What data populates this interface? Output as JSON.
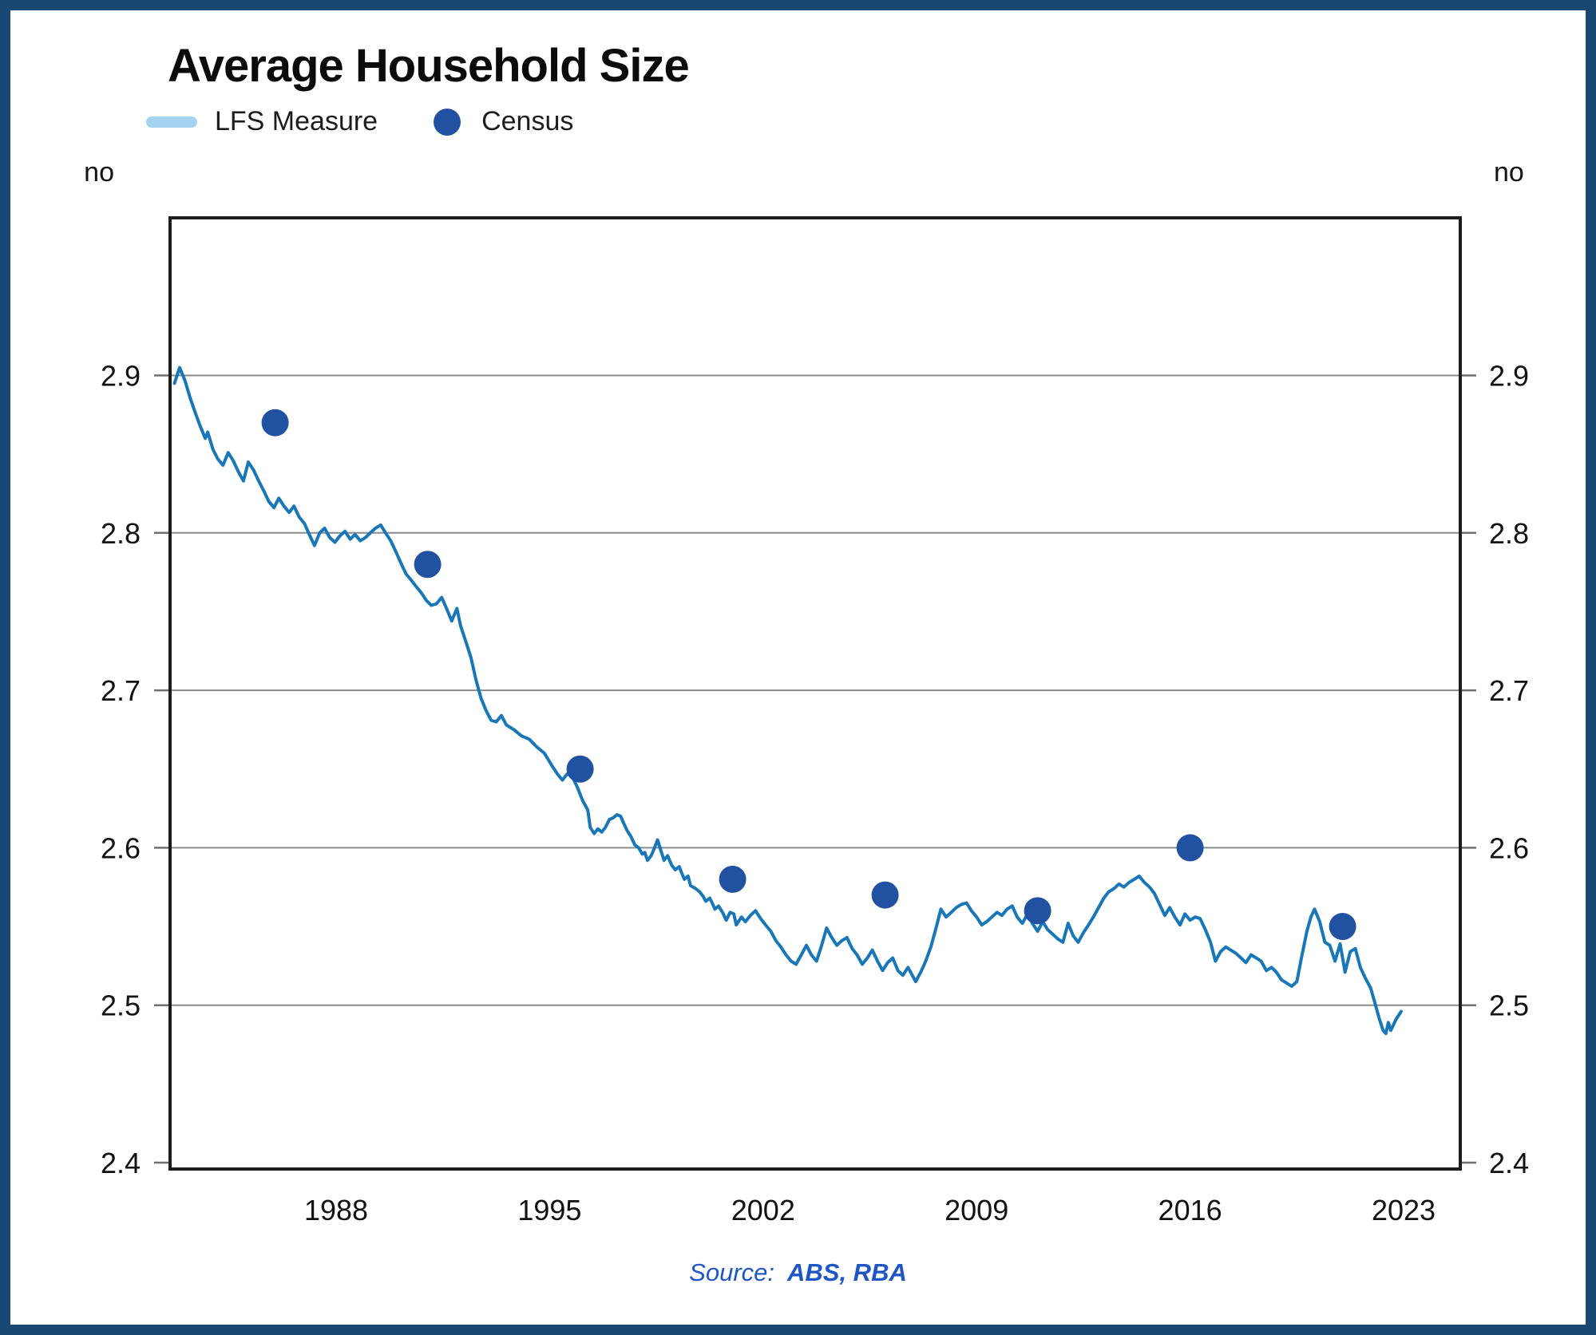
{
  "title": "Average Household Size",
  "legend": {
    "items": [
      {
        "label": "LFS Measure",
        "swatch": "line-swatch",
        "color": "#A6D3EF"
      },
      {
        "label": "Census",
        "swatch": "dot-swatch",
        "color": "#2151A1"
      }
    ]
  },
  "axis": {
    "unit_label": "no",
    "y_ticks": [
      2.4,
      2.5,
      2.6,
      2.7,
      2.8,
      2.9
    ],
    "grid_values": [
      2.5,
      2.6,
      2.7,
      2.8,
      2.9
    ],
    "x_ticks": [
      1988,
      1995,
      2002,
      2009,
      2016,
      2023
    ],
    "y_range": [
      2.4,
      3.0
    ],
    "x_range": [
      1982.3,
      2024.7
    ],
    "grid_color": "#8A8A8A",
    "frame_color": "#1D1D1D",
    "tick_color": "#707070"
  },
  "source": {
    "prefix": "Source:",
    "text": "ABS, RBA",
    "color": "#1E56C8"
  },
  "frame_border_color": "#1A4875",
  "chart_data": {
    "type": "line+scatter",
    "title": "Average Household Size",
    "xlabel": "",
    "ylabel": "no",
    "ylim": [
      2.4,
      3.0
    ],
    "xlim": [
      1982.3,
      2024.7
    ],
    "grid": true,
    "legend_position": "top-left",
    "series": [
      {
        "name": "LFS Measure",
        "type": "line",
        "color": "#1877B8",
        "points": [
          [
            1982.7,
            2.895
          ],
          [
            1982.87,
            2.905
          ],
          [
            1983.04,
            2.897
          ],
          [
            1983.21,
            2.886
          ],
          [
            1983.37,
            2.877
          ],
          [
            1983.54,
            2.868
          ],
          [
            1983.71,
            2.86
          ],
          [
            1983.79,
            2.864
          ],
          [
            1983.96,
            2.853
          ],
          [
            1984.12,
            2.847
          ],
          [
            1984.29,
            2.843
          ],
          [
            1984.46,
            2.851
          ],
          [
            1984.62,
            2.846
          ],
          [
            1984.79,
            2.839
          ],
          [
            1984.96,
            2.833
          ],
          [
            1985.12,
            2.845
          ],
          [
            1985.29,
            2.84
          ],
          [
            1985.46,
            2.833
          ],
          [
            1985.62,
            2.827
          ],
          [
            1985.79,
            2.82
          ],
          [
            1985.96,
            2.816
          ],
          [
            1986.12,
            2.822
          ],
          [
            1986.29,
            2.817
          ],
          [
            1986.46,
            2.813
          ],
          [
            1986.62,
            2.817
          ],
          [
            1986.79,
            2.81
          ],
          [
            1986.96,
            2.806
          ],
          [
            1987.12,
            2.799
          ],
          [
            1987.29,
            2.792
          ],
          [
            1987.46,
            2.8
          ],
          [
            1987.62,
            2.803
          ],
          [
            1987.79,
            2.797
          ],
          [
            1987.96,
            2.794
          ],
          [
            1988.12,
            2.798
          ],
          [
            1988.29,
            2.801
          ],
          [
            1988.46,
            2.796
          ],
          [
            1988.62,
            2.799
          ],
          [
            1988.79,
            2.795
          ],
          [
            1988.96,
            2.797
          ],
          [
            1989.12,
            2.8
          ],
          [
            1989.29,
            2.803
          ],
          [
            1989.46,
            2.805
          ],
          [
            1989.62,
            2.8
          ],
          [
            1989.79,
            2.795
          ],
          [
            1989.96,
            2.788
          ],
          [
            1990.12,
            2.781
          ],
          [
            1990.29,
            2.774
          ],
          [
            1990.46,
            2.77
          ],
          [
            1990.62,
            2.766
          ],
          [
            1990.79,
            2.762
          ],
          [
            1990.96,
            2.757
          ],
          [
            1991.12,
            2.754
          ],
          [
            1991.29,
            2.755
          ],
          [
            1991.46,
            2.759
          ],
          [
            1991.62,
            2.752
          ],
          [
            1991.79,
            2.744
          ],
          [
            1991.96,
            2.752
          ],
          [
            1992.08,
            2.741
          ],
          [
            1992.25,
            2.731
          ],
          [
            1992.42,
            2.721
          ],
          [
            1992.58,
            2.707
          ],
          [
            1992.75,
            2.695
          ],
          [
            1992.92,
            2.687
          ],
          [
            1993.08,
            2.681
          ],
          [
            1993.25,
            2.68
          ],
          [
            1993.42,
            2.684
          ],
          [
            1993.58,
            2.678
          ],
          [
            1993.83,
            2.675
          ],
          [
            1994.08,
            2.671
          ],
          [
            1994.33,
            2.669
          ],
          [
            1994.58,
            2.664
          ],
          [
            1994.83,
            2.66
          ],
          [
            1995.08,
            2.652
          ],
          [
            1995.25,
            2.647
          ],
          [
            1995.42,
            2.643
          ],
          [
            1995.58,
            2.647
          ],
          [
            1995.75,
            2.645
          ],
          [
            1995.92,
            2.638
          ],
          [
            1996.08,
            2.63
          ],
          [
            1996.25,
            2.624
          ],
          [
            1996.33,
            2.613
          ],
          [
            1996.46,
            2.609
          ],
          [
            1996.58,
            2.612
          ],
          [
            1996.71,
            2.61
          ],
          [
            1996.83,
            2.613
          ],
          [
            1996.96,
            2.618
          ],
          [
            1997.08,
            2.619
          ],
          [
            1997.21,
            2.621
          ],
          [
            1997.33,
            2.62
          ],
          [
            1997.42,
            2.616
          ],
          [
            1997.54,
            2.611
          ],
          [
            1997.67,
            2.607
          ],
          [
            1997.79,
            2.602
          ],
          [
            1997.92,
            2.6
          ],
          [
            1998.04,
            2.596
          ],
          [
            1998.12,
            2.597
          ],
          [
            1998.21,
            2.592
          ],
          [
            1998.33,
            2.595
          ],
          [
            1998.42,
            2.599
          ],
          [
            1998.54,
            2.605
          ],
          [
            1998.62,
            2.6
          ],
          [
            1998.75,
            2.592
          ],
          [
            1998.87,
            2.595
          ],
          [
            1999.0,
            2.589
          ],
          [
            1999.12,
            2.586
          ],
          [
            1999.25,
            2.588
          ],
          [
            1999.33,
            2.584
          ],
          [
            1999.42,
            2.58
          ],
          [
            1999.54,
            2.582
          ],
          [
            1999.62,
            2.576
          ],
          [
            1999.79,
            2.574
          ],
          [
            1999.92,
            2.572
          ],
          [
            2000.04,
            2.569
          ],
          [
            2000.12,
            2.566
          ],
          [
            2000.25,
            2.568
          ],
          [
            2000.33,
            2.565
          ],
          [
            2000.42,
            2.561
          ],
          [
            2000.54,
            2.563
          ],
          [
            2000.67,
            2.559
          ],
          [
            2000.79,
            2.554
          ],
          [
            2000.92,
            2.559
          ],
          [
            2001.04,
            2.558
          ],
          [
            2001.12,
            2.551
          ],
          [
            2001.29,
            2.556
          ],
          [
            2001.42,
            2.553
          ],
          [
            2001.58,
            2.557
          ],
          [
            2001.75,
            2.56
          ],
          [
            2001.92,
            2.555
          ],
          [
            2002.08,
            2.551
          ],
          [
            2002.25,
            2.547
          ],
          [
            2002.42,
            2.541
          ],
          [
            2002.58,
            2.537
          ],
          [
            2002.75,
            2.532
          ],
          [
            2002.92,
            2.528
          ],
          [
            2003.08,
            2.526
          ],
          [
            2003.25,
            2.532
          ],
          [
            2003.42,
            2.538
          ],
          [
            2003.58,
            2.532
          ],
          [
            2003.75,
            2.528
          ],
          [
            2003.92,
            2.538
          ],
          [
            2004.08,
            2.549
          ],
          [
            2004.25,
            2.543
          ],
          [
            2004.42,
            2.538
          ],
          [
            2004.58,
            2.541
          ],
          [
            2004.75,
            2.543
          ],
          [
            2004.92,
            2.536
          ],
          [
            2005.08,
            2.532
          ],
          [
            2005.25,
            2.526
          ],
          [
            2005.42,
            2.53
          ],
          [
            2005.58,
            2.535
          ],
          [
            2005.75,
            2.528
          ],
          [
            2005.92,
            2.522
          ],
          [
            2006.08,
            2.527
          ],
          [
            2006.25,
            2.53
          ],
          [
            2006.42,
            2.522
          ],
          [
            2006.58,
            2.519
          ],
          [
            2006.75,
            2.524
          ],
          [
            2006.92,
            2.518
          ],
          [
            2007.0,
            2.515
          ],
          [
            2007.17,
            2.521
          ],
          [
            2007.33,
            2.528
          ],
          [
            2007.5,
            2.537
          ],
          [
            2007.67,
            2.549
          ],
          [
            2007.83,
            2.561
          ],
          [
            2008.0,
            2.556
          ],
          [
            2008.17,
            2.559
          ],
          [
            2008.33,
            2.562
          ],
          [
            2008.5,
            2.564
          ],
          [
            2008.67,
            2.565
          ],
          [
            2008.83,
            2.56
          ],
          [
            2009.0,
            2.556
          ],
          [
            2009.17,
            2.551
          ],
          [
            2009.33,
            2.553
          ],
          [
            2009.5,
            2.556
          ],
          [
            2009.67,
            2.559
          ],
          [
            2009.83,
            2.557
          ],
          [
            2010.0,
            2.561
          ],
          [
            2010.17,
            2.563
          ],
          [
            2010.33,
            2.556
          ],
          [
            2010.5,
            2.552
          ],
          [
            2010.67,
            2.558
          ],
          [
            2010.83,
            2.552
          ],
          [
            2011.0,
            2.547
          ],
          [
            2011.17,
            2.553
          ],
          [
            2011.33,
            2.548
          ],
          [
            2011.5,
            2.545
          ],
          [
            2011.67,
            2.542
          ],
          [
            2011.83,
            2.54
          ],
          [
            2012.0,
            2.552
          ],
          [
            2012.17,
            2.544
          ],
          [
            2012.33,
            2.54
          ],
          [
            2012.5,
            2.546
          ],
          [
            2012.67,
            2.551
          ],
          [
            2012.83,
            2.556
          ],
          [
            2013.0,
            2.562
          ],
          [
            2013.17,
            2.568
          ],
          [
            2013.33,
            2.572
          ],
          [
            2013.5,
            2.574
          ],
          [
            2013.67,
            2.577
          ],
          [
            2013.83,
            2.575
          ],
          [
            2014.0,
            2.578
          ],
          [
            2014.17,
            2.58
          ],
          [
            2014.33,
            2.582
          ],
          [
            2014.5,
            2.578
          ],
          [
            2014.67,
            2.575
          ],
          [
            2014.83,
            2.571
          ],
          [
            2015.0,
            2.564
          ],
          [
            2015.17,
            2.557
          ],
          [
            2015.33,
            2.562
          ],
          [
            2015.5,
            2.556
          ],
          [
            2015.67,
            2.551
          ],
          [
            2015.83,
            2.558
          ],
          [
            2016.0,
            2.554
          ],
          [
            2016.17,
            2.556
          ],
          [
            2016.33,
            2.555
          ],
          [
            2016.5,
            2.548
          ],
          [
            2016.67,
            2.54
          ],
          [
            2016.83,
            2.528
          ],
          [
            2017.0,
            2.534
          ],
          [
            2017.17,
            2.537
          ],
          [
            2017.33,
            2.535
          ],
          [
            2017.5,
            2.533
          ],
          [
            2017.67,
            2.53
          ],
          [
            2017.83,
            2.527
          ],
          [
            2018.0,
            2.532
          ],
          [
            2018.17,
            2.53
          ],
          [
            2018.33,
            2.528
          ],
          [
            2018.5,
            2.522
          ],
          [
            2018.67,
            2.524
          ],
          [
            2018.83,
            2.521
          ],
          [
            2019.0,
            2.516
          ],
          [
            2019.17,
            2.514
          ],
          [
            2019.33,
            2.512
          ],
          [
            2019.5,
            2.515
          ],
          [
            2019.67,
            2.532
          ],
          [
            2019.83,
            2.547
          ],
          [
            2019.96,
            2.556
          ],
          [
            2020.08,
            2.561
          ],
          [
            2020.25,
            2.553
          ],
          [
            2020.42,
            2.54
          ],
          [
            2020.58,
            2.538
          ],
          [
            2020.75,
            2.528
          ],
          [
            2020.92,
            2.539
          ],
          [
            2021.08,
            2.521
          ],
          [
            2021.25,
            2.534
          ],
          [
            2021.42,
            2.536
          ],
          [
            2021.58,
            2.524
          ],
          [
            2021.75,
            2.517
          ],
          [
            2021.92,
            2.511
          ],
          [
            2022.08,
            2.5
          ],
          [
            2022.21,
            2.491
          ],
          [
            2022.33,
            2.484
          ],
          [
            2022.42,
            2.482
          ],
          [
            2022.5,
            2.489
          ],
          [
            2022.58,
            2.484
          ],
          [
            2022.75,
            2.491
          ],
          [
            2022.92,
            2.496
          ]
        ]
      },
      {
        "name": "Census",
        "type": "scatter",
        "color": "#2151A1",
        "points": [
          [
            1986,
            2.87
          ],
          [
            1991,
            2.78
          ],
          [
            1996,
            2.65
          ],
          [
            2001,
            2.58
          ],
          [
            2006,
            2.57
          ],
          [
            2011,
            2.56
          ],
          [
            2016,
            2.6
          ],
          [
            2021,
            2.55
          ]
        ]
      }
    ]
  }
}
